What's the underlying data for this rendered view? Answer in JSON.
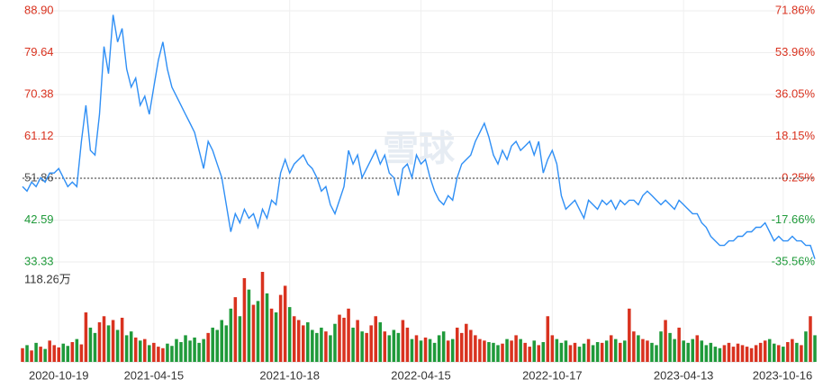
{
  "chart_data": [
    {
      "type": "line",
      "watermark": "雪球",
      "color": "#2f8ff5",
      "up_color": "#d9321f",
      "down_color": "#1f9a3a",
      "ref_color": "#555555",
      "ref_value": 51.86,
      "grid": true,
      "values": [
        50,
        49,
        51,
        50,
        52,
        51,
        53,
        53,
        54,
        52,
        50,
        51,
        50,
        60,
        68,
        58,
        57,
        66,
        81,
        75,
        88,
        82,
        85,
        76,
        72,
        74,
        68,
        70,
        66,
        72,
        78,
        82,
        76,
        72,
        70,
        68,
        66,
        64,
        62,
        58,
        54,
        60,
        58,
        55,
        52,
        46,
        40,
        44,
        42,
        45,
        43,
        44,
        41,
        45,
        43,
        47,
        46,
        53,
        56,
        53,
        55,
        56,
        57,
        55,
        54,
        52,
        49,
        50,
        46,
        44,
        47,
        50,
        58,
        55,
        57,
        52,
        54,
        56,
        58,
        55,
        57,
        53,
        52,
        48,
        54,
        55,
        52,
        57,
        55,
        56,
        52,
        49,
        47,
        46,
        48,
        47,
        52,
        55,
        56,
        57,
        60,
        62,
        64,
        61,
        57,
        55,
        58,
        56,
        59,
        60,
        58,
        59,
        60,
        57,
        60,
        53,
        56,
        58,
        55,
        48,
        45,
        46,
        47,
        45,
        43,
        47,
        46,
        45,
        47,
        46,
        47,
        45,
        47,
        46,
        47,
        47,
        46,
        48,
        49,
        48,
        47,
        46,
        47,
        46,
        45,
        47,
        46,
        45,
        44,
        44,
        42,
        41,
        39,
        38,
        37,
        37,
        38,
        38,
        39,
        39,
        40,
        40,
        41,
        41,
        42,
        40,
        38,
        39,
        38,
        38,
        39,
        38,
        38,
        37,
        37,
        34
      ],
      "ylim": [
        33.33,
        88.9
      ],
      "yticks": [
        {
          "value": 88.9,
          "label": "88.90"
        },
        79.64,
        70.38,
        61.12,
        51.86,
        42.59,
        33.33
      ],
      "y2lim": [
        -35.56,
        71.86
      ],
      "y2ticks": [
        {
          "value": 71.86,
          "label": "71.86%"
        },
        {
          "value": 53.96,
          "label": "53.96%"
        },
        {
          "value": 36.05,
          "label": "36.05%"
        },
        {
          "value": 18.15,
          "label": "18.15%"
        },
        {
          "value": 0.25,
          "label": "0.25%"
        },
        {
          "value": -17.66,
          "label": "-17.66%"
        },
        {
          "value": -35.56,
          "label": "-35.56%"
        }
      ]
    },
    {
      "type": "bar",
      "values": [
        18,
        22,
        15,
        25,
        20,
        17,
        28,
        22,
        19,
        24,
        21,
        26,
        30,
        23,
        65,
        45,
        38,
        52,
        60,
        48,
        55,
        42,
        58,
        35,
        40,
        32,
        28,
        30,
        22,
        25,
        20,
        18,
        24,
        21,
        30,
        26,
        35,
        28,
        32,
        25,
        30,
        38,
        45,
        42,
        55,
        48,
        70,
        85,
        60,
        110,
        95,
        75,
        80,
        118.26,
        90,
        70,
        65,
        88,
        100,
        72,
        60,
        55,
        48,
        52,
        42,
        38,
        45,
        40,
        35,
        50,
        62,
        58,
        70,
        45,
        55,
        40,
        38,
        48,
        60,
        52,
        40,
        35,
        42,
        38,
        55,
        45,
        30,
        35,
        28,
        32,
        30,
        25,
        35,
        40,
        28,
        30,
        45,
        38,
        50,
        42,
        35,
        30,
        28,
        26,
        25,
        22,
        24,
        30,
        28,
        35,
        30,
        25,
        20,
        28,
        22,
        26,
        60,
        35,
        30,
        25,
        28,
        22,
        25,
        20,
        24,
        30,
        22,
        26,
        25,
        28,
        35,
        30,
        25,
        28,
        70,
        40,
        35,
        30,
        28,
        25,
        22,
        40,
        55,
        38,
        30,
        45,
        28,
        25,
        30,
        35,
        28,
        22,
        25,
        20,
        18,
        22,
        25,
        20,
        24,
        22,
        20,
        18,
        22,
        25,
        28,
        30,
        24,
        22,
        20,
        26,
        30,
        25,
        22,
        40,
        60,
        35
      ],
      "ylim": [
        0,
        118.26
      ],
      "yticks": [
        {
          "value": 118.26,
          "label": "118.26万"
        }
      ],
      "xticks": [
        {
          "value": 8,
          "label": "2020-10-19"
        },
        {
          "value": 29,
          "label": "2021-04-15"
        },
        {
          "value": 59,
          "label": "2021-10-18"
        },
        {
          "value": 88,
          "label": "2022-04-15"
        },
        {
          "value": 117,
          "label": "2022-10-17"
        },
        {
          "value": 146,
          "label": "2023-04-13"
        },
        {
          "value": 168,
          "label": "2023-10-16"
        }
      ]
    }
  ]
}
